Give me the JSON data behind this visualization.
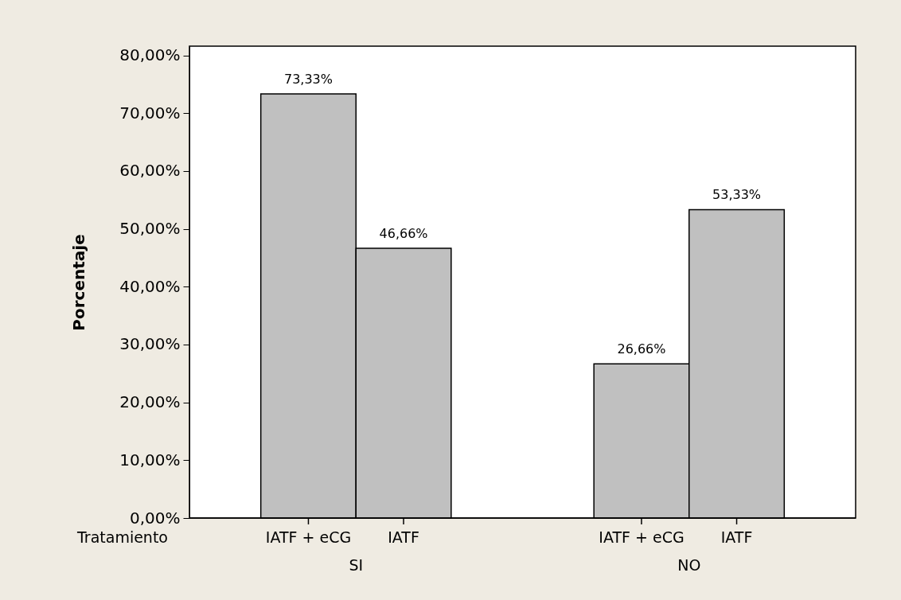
{
  "chart_data": {
    "type": "bar",
    "categories": [
      "IATF + eCG",
      "IATF",
      "IATF + eCG",
      "IATF"
    ],
    "values": [
      73.33,
      46.66,
      26.66,
      53.33
    ],
    "value_labels": [
      "73,33%",
      "46,66%",
      "26,66%",
      "53,33%"
    ],
    "color": "#c0c0c0",
    "ylabel": "Porcentaje",
    "xlabel": "Tratamiento",
    "annotations": [
      "SI",
      "NO"
    ],
    "ylim": [
      0,
      81.6
    ],
    "yticks": [
      {
        "value": 0,
        "label": "0,00%"
      },
      {
        "value": 10,
        "label": "10,00%"
      },
      {
        "value": 20,
        "label": "20,00%"
      },
      {
        "value": 30,
        "label": "30,00%"
      },
      {
        "value": 40,
        "label": "40,00%"
      },
      {
        "value": 50,
        "label": "50,00%"
      },
      {
        "value": 60,
        "label": "60,00%"
      },
      {
        "value": 70,
        "label": "70,00%"
      },
      {
        "value": 80,
        "label": "80,00%"
      }
    ],
    "grid": false
  }
}
